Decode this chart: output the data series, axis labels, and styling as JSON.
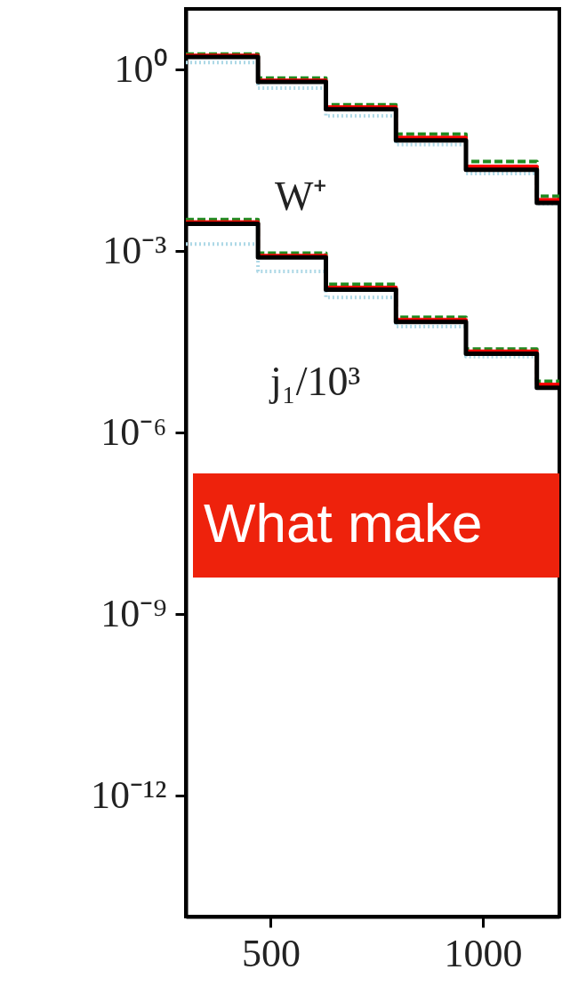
{
  "chart_data": {
    "type": "step",
    "x": [
      300,
      470,
      630,
      795,
      960,
      1127
    ],
    "series": [
      {
        "color": "#add8e6",
        "line_style": "dotted",
        "values": [
          1.3,
          0.49,
          0.17,
          0.057,
          0.019,
          0.006
        ]
      },
      {
        "color": "#228b22",
        "line_style": "dashed",
        "values": [
          1.8,
          0.72,
          0.26,
          0.085,
          0.03,
          0.008
        ]
      },
      {
        "color": "#ff0000",
        "line_style": "solid",
        "values": [
          1.7,
          0.66,
          0.24,
          0.075,
          0.025,
          0.007
        ]
      },
      {
        "color": "#000000",
        "line_style": "solid",
        "values": [
          1.6,
          0.62,
          0.22,
          0.067,
          0.022,
          0.0062
        ]
      },
      {
        "color": "#add8e6",
        "line_style": "dotted",
        "values": [
          0.0013,
          0.00046,
          0.00017,
          5.6e-05,
          1.8e-05,
          5.5e-06
        ]
      },
      {
        "color": "#228b22",
        "line_style": "dashed",
        "values": [
          0.0033,
          0.00092,
          0.00028,
          8e-05,
          2.4e-05,
          7e-06
        ]
      },
      {
        "color": "#ff0000",
        "line_style": "solid",
        "values": [
          0.003,
          0.00084,
          0.00025,
          7.3e-05,
          2.2e-05,
          6.2e-06
        ]
      },
      {
        "color": "#000000",
        "line_style": "solid",
        "values": [
          0.0028,
          0.00078,
          0.00023,
          6.7e-05,
          2e-05,
          5.5e-06
        ]
      }
    ],
    "log": "y",
    "xlim": [
      300,
      1180
    ],
    "ylim": [
      1e-14,
      10
    ],
    "xticks": [
      500,
      1000
    ],
    "yticks": [
      {
        "value": 1,
        "label": "10⁰"
      },
      {
        "value": 0.001,
        "label": "10⁻³"
      },
      {
        "value": 1e-06,
        "label": "10⁻⁶"
      },
      {
        "value": 1e-09,
        "label": "10⁻⁹"
      },
      {
        "value": 1e-12,
        "label": "10⁻¹²"
      }
    ],
    "annotations": [
      "W⁺",
      "j₁/10³",
      "What make"
    ],
    "grid": false
  }
}
